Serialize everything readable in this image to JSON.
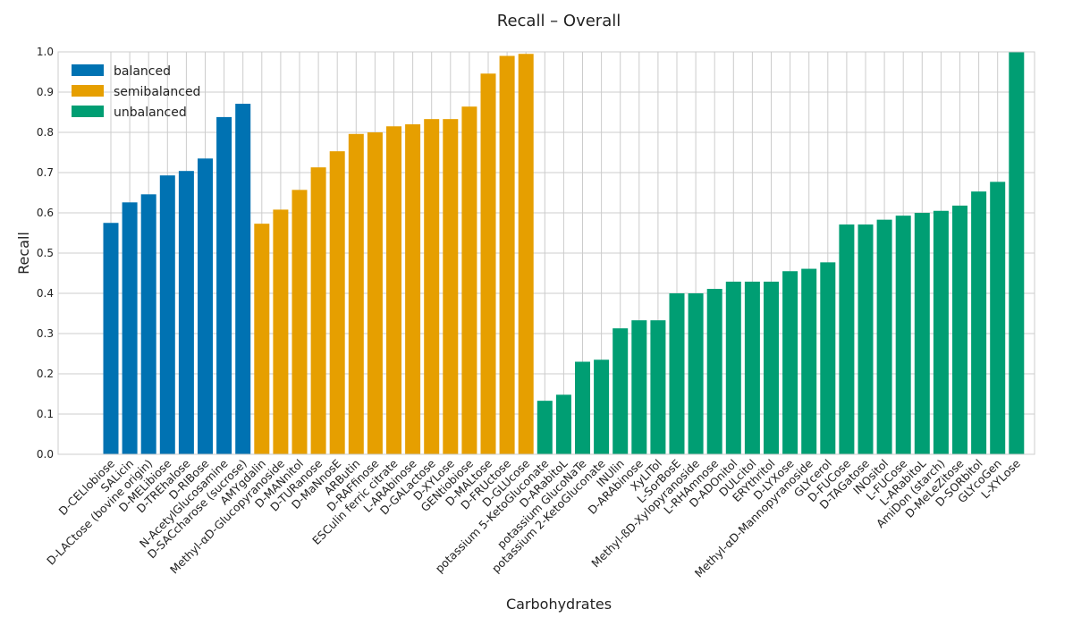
{
  "chart_data": {
    "type": "bar",
    "title": "Recall – Overall",
    "xlabel": "Carbohydrates",
    "ylabel": "Recall",
    "ylim": [
      0,
      1.0
    ],
    "yticks": [
      "0.0",
      "0.1",
      "0.2",
      "0.3",
      "0.4",
      "0.5",
      "0.6",
      "0.7",
      "0.8",
      "0.9",
      "1.0"
    ],
    "grid": true,
    "legend_position": "top-left",
    "colors": {
      "balanced": "#0072b2",
      "semibalanced": "#e69f00",
      "unbalanced": "#009e73"
    },
    "series": [
      {
        "name": "balanced",
        "categories": [
          "D-CELlobiose",
          "SALicin",
          "D-LACtose (bovine origin)",
          "D-MELibiose",
          "D-TREhalose",
          "D-RIBose",
          "N-AcetylGlucosamine",
          "D-SACcharose (sucrose)"
        ],
        "values": [
          0.575,
          0.626,
          0.646,
          0.693,
          0.704,
          0.735,
          0.838,
          0.871
        ]
      },
      {
        "name": "semibalanced",
        "categories": [
          "AMYgdalin",
          "Methyl-αD-Glucopyranoside",
          "D-MANnitol",
          "D-TURanose",
          "D-MaNnosE",
          "ARButin",
          "D-RAFfinose",
          "ESCulin ferric citrate",
          "L-ARAbinose",
          "D-GALactose",
          "D-XYLose",
          "GENtiobiose",
          "D-MALtose",
          "D-FRUctose",
          "D-GLUcose"
        ],
        "values": [
          0.573,
          0.608,
          0.657,
          0.713,
          0.753,
          0.796,
          0.8,
          0.815,
          0.82,
          0.833,
          0.833,
          0.864,
          0.946,
          0.99,
          0.995
        ]
      },
      {
        "name": "unbalanced",
        "categories": [
          "potassium 5-KetoGluconate",
          "D-ARabitoL",
          "potassium GlucoNaTe",
          "potassium 2-KetoGluconate",
          "INUlin",
          "D-ARAbinose",
          "XyLITol",
          "L-SorBosE",
          "Methyl-ßD-Xylopyranoside",
          "L-RHAmnose",
          "D-ADOnitol",
          "DULcitol",
          "ERYthritol",
          "D-LYXose",
          "Methyl-αD-Mannopyranoside",
          "GLYcerol",
          "D-FUCose",
          "D-TAGatose",
          "INOsitol",
          "L-FUCose",
          "L-ARabitoL",
          "AmiDon (starch)",
          "D-MeLeZitose",
          "D-SORbitol",
          "GLYcoGen",
          "L-XYLose"
        ],
        "values": [
          0.133,
          0.148,
          0.23,
          0.235,
          0.313,
          0.333,
          0.333,
          0.4,
          0.4,
          0.411,
          0.429,
          0.429,
          0.429,
          0.455,
          0.461,
          0.477,
          0.571,
          0.571,
          0.583,
          0.593,
          0.6,
          0.605,
          0.618,
          0.653,
          0.677,
          1.0
        ]
      }
    ]
  }
}
